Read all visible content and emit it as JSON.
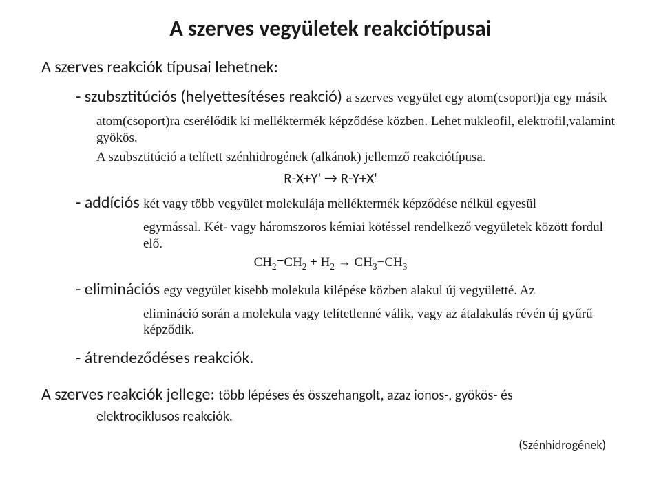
{
  "title": "A szerves vegyületek reakciótípusai",
  "intro": "A szerves reakciók típusai lehetnek:",
  "items": [
    {
      "dash": "- ",
      "term": "szubsztitúciós (helyettesítéses reakció) ",
      "desc": "a szerves vegyület egy atom(csoport)ja egy másik",
      "sublines": [
        "atom(csoport)ra cserélődik ki melléktermék képződése közben. Lehet nukleofil, elektrofil,valamint gyökös.",
        "A szubsztitúció a telített szénhidrogének (alkánok) jellemző reakciótípusa."
      ],
      "eqn_center": "R-X+Y' → R-Y+X'"
    },
    {
      "dash": "- ",
      "term": "addíciós ",
      "desc": "két vagy több vegyület molekulája melléktermék képződése nélkül egyesül",
      "sublines2": [
        "egymással. Két- vagy háromszoros kémiai kötéssel rendelkező vegyületek között fordul elő."
      ],
      "eqn_html": "CH<sub>2</sub>=CH<sub>2</sub> + H<sub>2</sub> → CH<sub>3</sub>−CH<sub>3</sub>"
    },
    {
      "dash": "- ",
      "term": "eliminációs ",
      "desc": "egy vegyület kisebb molekula kilépése közben alakul új vegyületté. Az",
      "sublines2": [
        "elimináció során a molekula vagy telítetlenné válik, vagy az átalakulás révén új gyűrű képződik."
      ]
    }
  ],
  "item4": "- átrendeződéses reakciók.",
  "closing_lead": "A szerves reakciók jellege: ",
  "closing_rest": "több lépéses és összehangolt, azaz ionos-, gyökös- és",
  "closing_sub": "elektrociklusos reakciók.",
  "footer": "(Szénhidrogének)"
}
